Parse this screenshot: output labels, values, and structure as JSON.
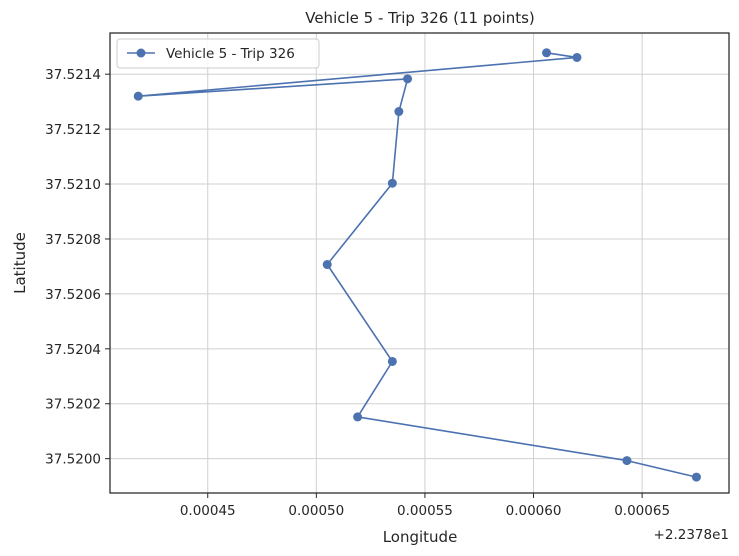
{
  "chart_data": {
    "type": "line",
    "title": "Vehicle 5 - Trip 326 (11 points)",
    "xlabel": "Longitude",
    "ylabel": "Latitude",
    "x_offset_label": "+2.2378e1",
    "xlim": [
      0.000405,
      0.00069
    ],
    "ylim": [
      37.519875,
      37.52155
    ],
    "x_ticks": [
      0.00045,
      0.0005,
      0.00055,
      0.0006,
      0.00065
    ],
    "x_tick_labels": [
      "0.00045",
      "0.00050",
      "0.00055",
      "0.00060",
      "0.00065"
    ],
    "y_ticks": [
      37.52,
      37.5202,
      37.5204,
      37.5206,
      37.5208,
      37.521,
      37.5212,
      37.5214
    ],
    "y_tick_labels": [
      "37.5200",
      "37.5202",
      "37.5204",
      "37.5206",
      "37.5208",
      "37.5210",
      "37.5212",
      "37.5214"
    ],
    "grid": true,
    "legend_position": "top-left",
    "color": "#4c72b0",
    "series": [
      {
        "name": "Vehicle 5 - Trip 326",
        "x": [
          0.000675,
          0.000643,
          0.000519,
          0.000535,
          0.000505,
          0.000535,
          0.000538,
          0.000542,
          0.000418,
          0.00062,
          0.000606
        ],
        "y": [
          37.519933,
          37.519993,
          37.520152,
          37.520354,
          37.520707,
          37.521003,
          37.521264,
          37.521383,
          37.52132,
          37.521461,
          37.521478
        ]
      }
    ]
  }
}
